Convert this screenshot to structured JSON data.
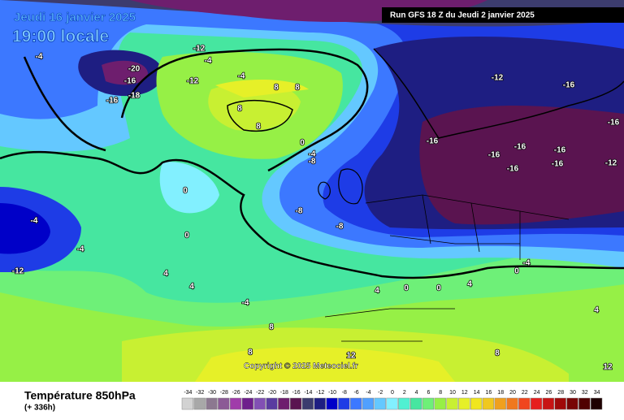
{
  "header": {
    "date": "Jeudi 16 janvier 2025",
    "time": "19:00 locale",
    "run": "Run GFS 18 Z du Jeudi 2 janvier 2025",
    "copyright": "Copyright © 2025 Meteociel.fr"
  },
  "footer": {
    "title": "Température 850hPa",
    "lead": "(+ 336h)"
  },
  "legend": {
    "values": [
      -34,
      -32,
      -30,
      -28,
      -26,
      -24,
      -22,
      -20,
      -18,
      -16,
      -14,
      -12,
      -10,
      -8,
      -6,
      -4,
      -2,
      0,
      2,
      4,
      6,
      8,
      10,
      12,
      14,
      16,
      18,
      20,
      22,
      24,
      26,
      28,
      30,
      32,
      34
    ],
    "colors": [
      "#d2d2d2",
      "#a8a8a8",
      "#8c7890",
      "#8c5a96",
      "#a03caa",
      "#6e1e8c",
      "#8250b4",
      "#5a3ca0",
      "#6e1e6e",
      "#5a1450",
      "#3c3c6e",
      "#1e1e82",
      "#0000c8",
      "#1e3ce6",
      "#3c78ff",
      "#50a0ff",
      "#64c8ff",
      "#82f0ff",
      "#50f0d2",
      "#46e6a0",
      "#6ef078",
      "#96f046",
      "#c8f032",
      "#e6f028",
      "#f0e61e",
      "#f0c81e",
      "#f0a01e",
      "#f0781e",
      "#f0461e",
      "#e61e1e",
      "#c81414",
      "#a00a0a",
      "#780505",
      "#500000",
      "#1e0000"
    ]
  },
  "contour_labels": [
    -4,
    -20,
    -16,
    -16,
    -18,
    -12,
    -4,
    -12,
    -4,
    8,
    8,
    8,
    8,
    0,
    -4,
    -8,
    -16,
    -16,
    -16,
    -16,
    -16,
    -16,
    -12,
    -16,
    -16,
    -12,
    -8,
    -8,
    0,
    0,
    -4,
    -4,
    -12,
    4,
    4,
    -4,
    8,
    8,
    12,
    4,
    0,
    0,
    4,
    8,
    -4,
    0,
    4,
    12
  ]
}
